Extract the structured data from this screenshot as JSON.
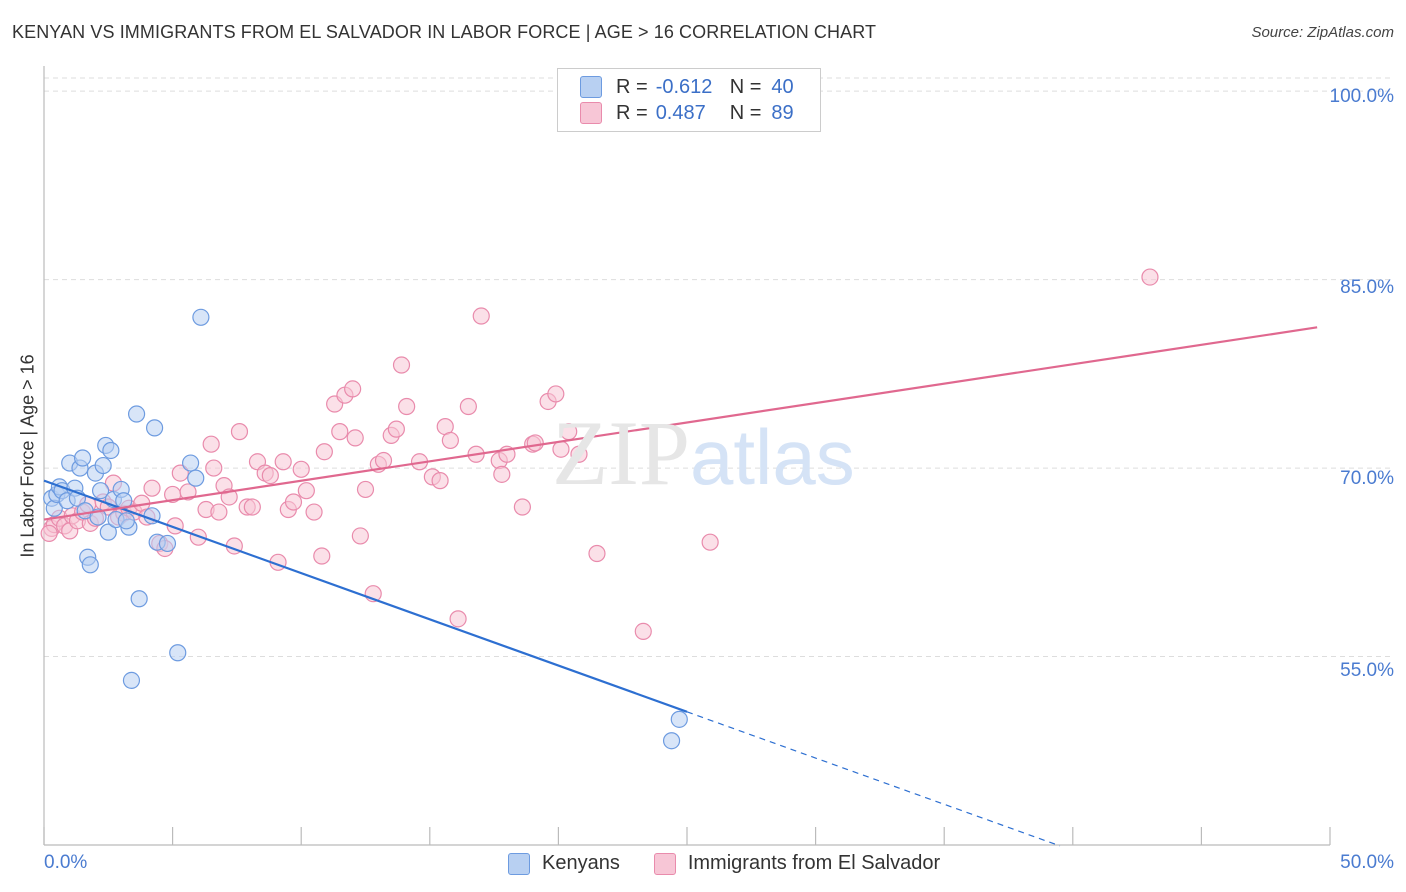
{
  "title": "KENYAN VS IMMIGRANTS FROM EL SALVADOR IN LABOR FORCE | AGE > 16 CORRELATION CHART",
  "source": "Source: ZipAtlas.com",
  "watermark": {
    "zip": "ZIP",
    "atlas": "atlas"
  },
  "colors": {
    "kenyan_fill": "#b8d0f2",
    "kenyan_stroke": "#6d9be0",
    "kenyan_line": "#2d6fd1",
    "salvador_fill": "#f7c6d6",
    "salvador_stroke": "#e98bac",
    "salvador_line": "#e0688f",
    "grid": "#dddddd",
    "axis": "#bbbbbb",
    "tick_text": "#4a7bd0"
  },
  "legend": {
    "rows": [
      {
        "r_label": "R = ",
        "r_value": "-0.612",
        "n_label": "N = ",
        "n_value": "40"
      },
      {
        "r_label": "R = ",
        "r_value": "0.487",
        "n_label": "N = ",
        "n_value": "89"
      }
    ]
  },
  "bottom_legend": {
    "kenyans": "Kenyans",
    "salvador": "Immigrants from El Salvador"
  },
  "chart_data": {
    "type": "scatter",
    "title": "KENYAN VS IMMIGRANTS FROM EL SALVADOR IN LABOR FORCE | AGE > 16 CORRELATION CHART",
    "xlabel": "",
    "ylabel": "In Labor Force | Age > 16",
    "xlim": [
      0,
      50
    ],
    "ylim": [
      40,
      102
    ],
    "x_tick_labels": {
      "min": "0.0%",
      "max": "50.0%"
    },
    "y_ticks": [
      {
        "value": 100,
        "label": "100.0%"
      },
      {
        "value": 85,
        "label": "85.0%"
      },
      {
        "value": 70,
        "label": "70.0%"
      },
      {
        "value": 55,
        "label": "55.0%"
      }
    ],
    "grid": true,
    "series": [
      {
        "name": "Kenyans",
        "r": -0.612,
        "n": 40,
        "trend": {
          "x0": 0,
          "y0": 69.0,
          "x1": 25.0,
          "y1": 50.6,
          "dash_to_x": 39.5
        },
        "points": [
          [
            0.3,
            67.6
          ],
          [
            0.4,
            66.8
          ],
          [
            0.5,
            67.9
          ],
          [
            0.6,
            68.5
          ],
          [
            0.7,
            68.2
          ],
          [
            0.9,
            67.4
          ],
          [
            1.0,
            70.4
          ],
          [
            1.2,
            68.4
          ],
          [
            1.3,
            67.6
          ],
          [
            1.4,
            70.0
          ],
          [
            1.5,
            70.8
          ],
          [
            1.6,
            66.6
          ],
          [
            1.7,
            62.9
          ],
          [
            1.8,
            62.3
          ],
          [
            2.0,
            69.6
          ],
          [
            2.1,
            66.1
          ],
          [
            2.2,
            68.2
          ],
          [
            2.3,
            70.2
          ],
          [
            2.4,
            71.8
          ],
          [
            2.5,
            64.9
          ],
          [
            2.6,
            71.4
          ],
          [
            2.7,
            67.5
          ],
          [
            2.8,
            65.9
          ],
          [
            3.0,
            68.3
          ],
          [
            3.1,
            67.4
          ],
          [
            3.3,
            65.3
          ],
          [
            3.4,
            53.1
          ],
          [
            3.6,
            74.3
          ],
          [
            3.7,
            59.6
          ],
          [
            4.2,
            66.2
          ],
          [
            4.3,
            73.2
          ],
          [
            4.4,
            64.1
          ],
          [
            4.8,
            64.0
          ],
          [
            5.2,
            55.3
          ],
          [
            5.7,
            70.4
          ],
          [
            5.9,
            69.2
          ],
          [
            6.1,
            82.0
          ],
          [
            24.7,
            50.0
          ],
          [
            24.4,
            48.3
          ],
          [
            3.2,
            65.8
          ]
        ]
      },
      {
        "name": "Immigrants from El Salvador",
        "r": 0.487,
        "n": 89,
        "trend": {
          "x0": 0,
          "y0": 65.9,
          "x1": 49.5,
          "y1": 81.2
        },
        "points": [
          [
            0.3,
            65.2
          ],
          [
            0.4,
            65.5
          ],
          [
            0.6,
            66.0
          ],
          [
            0.8,
            65.4
          ],
          [
            1.0,
            65.0
          ],
          [
            1.1,
            66.2
          ],
          [
            1.3,
            65.8
          ],
          [
            1.5,
            66.5
          ],
          [
            1.7,
            67.1
          ],
          [
            1.8,
            65.6
          ],
          [
            2.0,
            66.0
          ],
          [
            2.3,
            67.3
          ],
          [
            2.5,
            66.9
          ],
          [
            2.7,
            68.8
          ],
          [
            2.9,
            66.1
          ],
          [
            3.1,
            66.4
          ],
          [
            3.3,
            66.8
          ],
          [
            3.5,
            66.5
          ],
          [
            3.8,
            67.2
          ],
          [
            4.0,
            66.1
          ],
          [
            4.2,
            68.4
          ],
          [
            4.5,
            64.0
          ],
          [
            4.7,
            63.6
          ],
          [
            5.0,
            67.9
          ],
          [
            5.1,
            65.4
          ],
          [
            5.3,
            69.6
          ],
          [
            5.6,
            68.1
          ],
          [
            6.0,
            64.5
          ],
          [
            6.3,
            66.7
          ],
          [
            6.5,
            71.9
          ],
          [
            6.6,
            70.0
          ],
          [
            6.8,
            66.5
          ],
          [
            7.0,
            68.6
          ],
          [
            7.2,
            67.7
          ],
          [
            7.4,
            63.8
          ],
          [
            7.6,
            72.9
          ],
          [
            7.9,
            66.9
          ],
          [
            8.1,
            66.9
          ],
          [
            8.3,
            70.5
          ],
          [
            8.6,
            69.6
          ],
          [
            8.8,
            69.4
          ],
          [
            9.1,
            62.5
          ],
          [
            9.3,
            70.5
          ],
          [
            9.5,
            66.7
          ],
          [
            9.7,
            67.3
          ],
          [
            10.0,
            69.9
          ],
          [
            10.2,
            68.2
          ],
          [
            10.5,
            66.5
          ],
          [
            10.8,
            63.0
          ],
          [
            10.9,
            71.3
          ],
          [
            11.3,
            75.1
          ],
          [
            11.5,
            72.9
          ],
          [
            11.7,
            75.8
          ],
          [
            12.0,
            76.3
          ],
          [
            12.1,
            72.4
          ],
          [
            12.3,
            64.6
          ],
          [
            12.5,
            68.3
          ],
          [
            12.8,
            60.0
          ],
          [
            13.0,
            70.3
          ],
          [
            13.2,
            70.6
          ],
          [
            13.5,
            72.6
          ],
          [
            13.7,
            73.1
          ],
          [
            13.9,
            78.2
          ],
          [
            14.1,
            74.9
          ],
          [
            14.6,
            70.5
          ],
          [
            15.1,
            69.3
          ],
          [
            15.4,
            69.0
          ],
          [
            15.6,
            73.3
          ],
          [
            15.8,
            72.2
          ],
          [
            16.1,
            58.0
          ],
          [
            16.5,
            74.9
          ],
          [
            16.8,
            71.1
          ],
          [
            17.0,
            82.1
          ],
          [
            17.7,
            70.6
          ],
          [
            17.8,
            69.5
          ],
          [
            18.0,
            71.1
          ],
          [
            18.6,
            66.9
          ],
          [
            19.0,
            71.9
          ],
          [
            19.1,
            72.0
          ],
          [
            19.6,
            75.3
          ],
          [
            19.9,
            75.9
          ],
          [
            20.1,
            71.5
          ],
          [
            20.4,
            72.9
          ],
          [
            20.8,
            71.1
          ],
          [
            21.5,
            63.2
          ],
          [
            23.3,
            57.0
          ],
          [
            25.9,
            64.1
          ],
          [
            43.0,
            85.2
          ],
          [
            0.2,
            64.8
          ]
        ]
      }
    ]
  }
}
